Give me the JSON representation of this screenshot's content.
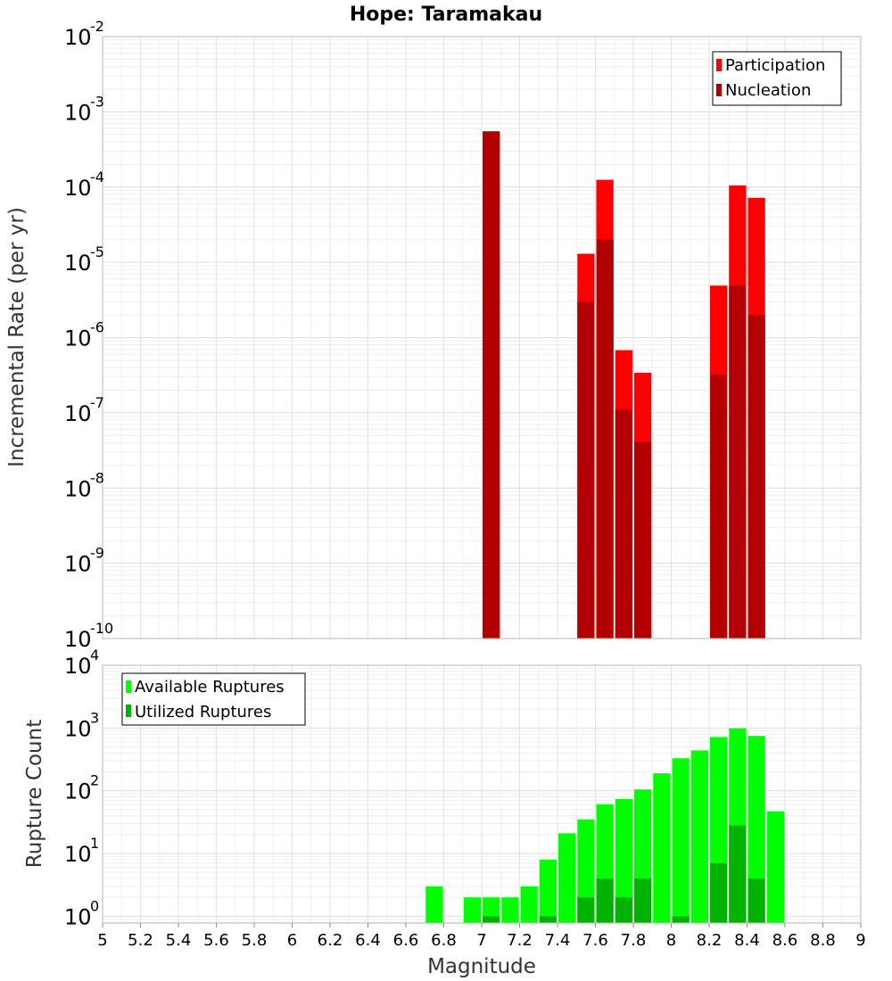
{
  "chart_data": [
    {
      "type": "bar",
      "title": "Hope: Taramakau",
      "xlabel": "",
      "ylabel": "Incremental Rate (per yr)",
      "yscale": "log",
      "ylim": [
        1e-10,
        0.01
      ],
      "xlim": [
        5,
        9
      ],
      "grid": true,
      "legend_position": "top-right",
      "ytick_labels": [
        {
          "base": "10",
          "exp": "-10",
          "value": 1e-10
        },
        {
          "base": "10",
          "exp": "-9",
          "value": 1e-09
        },
        {
          "base": "10",
          "exp": "-8",
          "value": 1e-08
        },
        {
          "base": "10",
          "exp": "-7",
          "value": 1e-07
        },
        {
          "base": "10",
          "exp": "-6",
          "value": 1e-06
        },
        {
          "base": "10",
          "exp": "-5",
          "value": 1e-05
        },
        {
          "base": "10",
          "exp": "-4",
          "value": 0.0001
        },
        {
          "base": "10",
          "exp": "-3",
          "value": 0.001
        },
        {
          "base": "10",
          "exp": "-2",
          "value": 0.01
        }
      ],
      "series": [
        {
          "name": "Participation",
          "color": "#ff0000",
          "x": [
            7.05,
            7.55,
            7.65,
            7.75,
            7.85,
            8.25,
            8.35,
            8.45
          ],
          "values": [
            0.00055,
            1.3e-05,
            0.000125,
            6.8e-07,
            3.4e-07,
            4.9e-06,
            0.000105,
            7.2e-05
          ]
        },
        {
          "name": "Nucleation",
          "color": "#b30000",
          "x": [
            7.05,
            7.55,
            7.65,
            7.75,
            7.85,
            8.25,
            8.35,
            8.45
          ],
          "values": [
            0.00055,
            3e-06,
            2e-05,
            1.1e-07,
            4.1e-08,
            3.2e-07,
            4.9e-06,
            2e-06
          ]
        }
      ]
    },
    {
      "type": "bar",
      "title": "",
      "xlabel": "Magnitude",
      "ylabel": "Rupture Count",
      "yscale": "log",
      "ylim": [
        0.78,
        10000.0
      ],
      "xlim": [
        5,
        9
      ],
      "grid": true,
      "legend_position": "top-left",
      "xtick_labels": [
        "5",
        "5.2",
        "5.4",
        "5.6",
        "5.8",
        "6",
        "6.2",
        "6.4",
        "6.6",
        "6.8",
        "7",
        "7.2",
        "7.4",
        "7.6",
        "7.8",
        "8",
        "8.2",
        "8.4",
        "8.6",
        "8.8",
        "9"
      ],
      "ytick_labels": [
        {
          "base": "10",
          "exp": "0",
          "value": 1
        },
        {
          "base": "10",
          "exp": "1",
          "value": 10
        },
        {
          "base": "10",
          "exp": "2",
          "value": 100
        },
        {
          "base": "10",
          "exp": "3",
          "value": 1000
        },
        {
          "base": "10",
          "exp": "4",
          "value": 10000
        }
      ],
      "series": [
        {
          "name": "Available Ruptures",
          "color": "#00ff00",
          "x": [
            6.75,
            6.95,
            7.05,
            7.15,
            7.25,
            7.35,
            7.45,
            7.55,
            7.65,
            7.75,
            7.85,
            7.95,
            8.05,
            8.15,
            8.25,
            8.35,
            8.45,
            8.55
          ],
          "values": [
            3,
            2,
            2,
            2,
            3,
            8,
            21,
            35,
            61,
            74,
            105,
            190,
            330,
            440,
            720,
            990,
            750,
            47
          ]
        },
        {
          "name": "Utilized Ruptures",
          "color": "#00b300",
          "x": [
            7.05,
            7.35,
            7.55,
            7.65,
            7.75,
            7.85,
            8.05,
            8.25,
            8.35,
            8.45
          ],
          "values": [
            1,
            1,
            2,
            4,
            2,
            4,
            1,
            7,
            28,
            4
          ]
        }
      ]
    }
  ]
}
